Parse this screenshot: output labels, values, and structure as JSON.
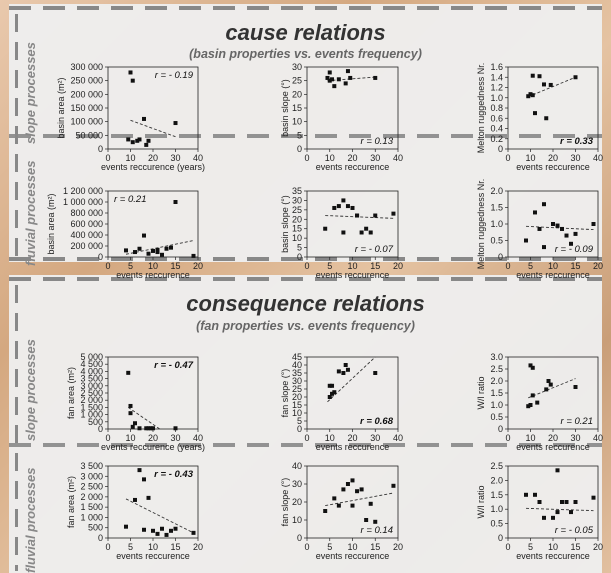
{
  "sections": [
    {
      "title": "cause relations",
      "subtitle": "(basin properties vs. events frequency)"
    },
    {
      "title": "consequence relations",
      "subtitle": "(fan properties vs. events frequency)"
    }
  ],
  "row_labels": {
    "slope": "slope processes",
    "fluvial": "fluvial processes"
  },
  "colors": {
    "dash": "#888888",
    "marker": "#111111",
    "trend": "#333333"
  },
  "chart_data": [
    {
      "type": "scatter",
      "group": "cause",
      "row": "slope",
      "ylabel": "basin area (m²)",
      "xlabel": "events reccurence (years)",
      "xlim": [
        0,
        40
      ],
      "ylim": [
        0,
        300000
      ],
      "xticks": [
        0,
        10,
        20,
        30,
        40
      ],
      "yticks": [
        0,
        50000,
        100000,
        150000,
        200000,
        250000,
        300000
      ],
      "ytick_labels": [
        "0",
        "50 000",
        "100 000",
        "150 000",
        "200 000",
        "250 000",
        "300 000"
      ],
      "x": [
        9,
        10,
        11,
        11,
        13,
        14,
        16,
        17,
        18,
        30
      ],
      "y": [
        35000,
        280000,
        25000,
        250000,
        30000,
        35000,
        110000,
        15000,
        30000,
        95000
      ],
      "trend": [
        [
          10,
          105000
        ],
        [
          30,
          45000
        ]
      ],
      "r_text": "r = - 0.19",
      "r_bold": false,
      "r_pos": "top-right"
    },
    {
      "type": "scatter",
      "group": "cause",
      "row": "slope",
      "ylabel": "basin slope (°)",
      "xlabel": "events reccurence",
      "xlim": [
        0,
        40
      ],
      "ylim": [
        0,
        30
      ],
      "xticks": [
        0,
        10,
        20,
        30,
        40
      ],
      "yticks": [
        0,
        5,
        10,
        15,
        20,
        25,
        30
      ],
      "ytick_labels": [
        "0",
        "5",
        "10",
        "15",
        "20",
        "25",
        "30"
      ],
      "x": [
        9,
        10,
        10,
        11,
        12,
        14,
        17,
        18,
        19,
        30
      ],
      "y": [
        26,
        25,
        28,
        25.5,
        23,
        25.5,
        24,
        28.5,
        26,
        26
      ],
      "trend": [
        [
          9,
          25
        ],
        [
          30,
          26.3
        ]
      ],
      "r_text": "r = 0.13",
      "r_bold": false,
      "r_pos": "bottom-right"
    },
    {
      "type": "scatter",
      "group": "cause",
      "row": "slope",
      "ylabel": "Melton ruggedness Nr.",
      "xlabel": "events reccurence",
      "xlim": [
        0,
        40
      ],
      "ylim": [
        0,
        1.6
      ],
      "xticks": [
        0,
        10,
        20,
        30,
        40
      ],
      "yticks": [
        0,
        0.2,
        0.4,
        0.6,
        0.8,
        1.0,
        1.2,
        1.4,
        1.6
      ],
      "ytick_labels": [
        "0",
        "0.2",
        "0.4",
        "0.6",
        "0.8",
        "1.0",
        "1.2",
        "1.4",
        "1.6"
      ],
      "x": [
        9,
        10,
        11,
        11,
        12,
        14,
        16,
        17,
        19,
        30
      ],
      "y": [
        1.03,
        1.07,
        1.05,
        1.43,
        0.7,
        1.42,
        1.26,
        0.6,
        1.25,
        1.4
      ],
      "trend": [
        [
          9,
          1.02
        ],
        [
          30,
          1.4
        ]
      ],
      "r_text": "r = 0.33",
      "r_bold": true,
      "r_pos": "bottom-right"
    },
    {
      "type": "scatter",
      "group": "cause",
      "row": "fluvial",
      "ylabel": "basin area (m²)",
      "xlabel": "events reccurence",
      "xlim": [
        0,
        20
      ],
      "ylim": [
        0,
        1200000
      ],
      "xticks": [
        0,
        5,
        10,
        15,
        20
      ],
      "yticks": [
        0,
        200000,
        400000,
        600000,
        800000,
        1000000,
        1200000
      ],
      "ytick_labels": [
        "0",
        "200 000",
        "400 000",
        "600 000",
        "800 000",
        "1 000 000",
        "1 200 000"
      ],
      "x": [
        4,
        6,
        7,
        8,
        9,
        10,
        11,
        11,
        12,
        13,
        14,
        15,
        19
      ],
      "y": [
        120000,
        90000,
        150000,
        390000,
        60000,
        110000,
        130000,
        90000,
        40000,
        150000,
        170000,
        1000000,
        20000
      ],
      "trend": [
        [
          4,
          50000
        ],
        [
          19,
          300000
        ]
      ],
      "r_text": "r = 0.21",
      "r_bold": false,
      "r_pos": "top-left"
    },
    {
      "type": "scatter",
      "group": "cause",
      "row": "fluvial",
      "ylabel": "basin slope (°)",
      "xlabel": "events reccurence",
      "xlim": [
        0,
        20
      ],
      "ylim": [
        0,
        35
      ],
      "xticks": [
        0,
        5,
        10,
        15,
        20
      ],
      "yticks": [
        0,
        5,
        10,
        15,
        20,
        25,
        30,
        35
      ],
      "ytick_labels": [
        "0",
        "5",
        "10",
        "15",
        "20",
        "25",
        "30",
        "35"
      ],
      "x": [
        4,
        6,
        7,
        8,
        8,
        9,
        10,
        11,
        11,
        12,
        13,
        14,
        15,
        19
      ],
      "y": [
        15,
        26,
        27,
        30,
        13,
        27,
        26,
        22,
        22,
        13,
        15,
        13,
        22,
        23
      ],
      "trend": [
        [
          4,
          22
        ],
        [
          19,
          20.5
        ]
      ],
      "r_text": "r = - 0.07",
      "r_bold": false,
      "r_pos": "bottom-right"
    },
    {
      "type": "scatter",
      "group": "cause",
      "row": "fluvial",
      "ylabel": "Melton ruggedness Nr.",
      "xlabel": "events reccurence",
      "xlim": [
        0,
        20
      ],
      "ylim": [
        0,
        2.0
      ],
      "xticks": [
        0,
        5,
        10,
        15,
        20
      ],
      "yticks": [
        0,
        0.5,
        1.0,
        1.5,
        2.0
      ],
      "ytick_labels": [
        "0",
        "0.5",
        "1.0",
        "1.5",
        "2.0"
      ],
      "x": [
        4,
        6,
        7,
        8,
        8,
        10,
        11,
        11,
        12,
        13,
        14,
        15,
        19
      ],
      "y": [
        0.5,
        1.35,
        0.85,
        1.6,
        0.3,
        1.0,
        0.95,
        0.95,
        0.85,
        0.65,
        0.4,
        0.7,
        1.0
      ],
      "trend": [
        [
          4,
          0.93
        ],
        [
          19,
          0.83
        ]
      ],
      "r_text": "r = - 0.09",
      "r_bold": false,
      "r_pos": "bottom-right"
    },
    {
      "type": "scatter",
      "group": "consequence",
      "row": "slope",
      "ylabel": "fan area (m²)",
      "xlabel": "events reccurence (years)",
      "xlim": [
        0,
        40
      ],
      "ylim": [
        0,
        5000
      ],
      "xticks": [
        0,
        10,
        20,
        30,
        40
      ],
      "yticks": [
        0,
        500,
        1000,
        1500,
        2000,
        2500,
        3000,
        3500,
        4000,
        4500,
        5000
      ],
      "ytick_labels": [
        "0",
        "500",
        "1 000",
        "1 500",
        "2 000",
        "2 500",
        "3 000",
        "3 500",
        "4 000",
        "4 500",
        "5 000"
      ],
      "x": [
        9,
        10,
        10,
        11,
        12,
        14,
        17,
        18,
        19,
        20,
        30
      ],
      "y": [
        3900,
        1600,
        1100,
        150,
        400,
        50,
        50,
        50,
        50,
        50,
        50
      ],
      "trend": [
        [
          9,
          1500
        ],
        [
          23,
          0
        ]
      ],
      "r_text": "r = - 0.47",
      "r_bold": true,
      "r_pos": "top-right"
    },
    {
      "type": "scatter",
      "group": "consequence",
      "row": "slope",
      "ylabel": "fan slope (°)",
      "xlabel": "events reccurence",
      "xlim": [
        0,
        40
      ],
      "ylim": [
        0,
        45
      ],
      "xticks": [
        0,
        10,
        20,
        30,
        40
      ],
      "yticks": [
        0,
        5,
        10,
        15,
        20,
        25,
        30,
        35,
        40,
        45
      ],
      "ytick_labels": [
        "0",
        "5",
        "10",
        "15",
        "20",
        "25",
        "30",
        "35",
        "40",
        "45"
      ],
      "x": [
        10,
        10,
        11,
        11,
        12,
        14,
        16,
        17,
        18,
        30
      ],
      "y": [
        27,
        20,
        22,
        27,
        23,
        36,
        35,
        40,
        37,
        35
      ],
      "trend": [
        [
          9,
          17
        ],
        [
          30,
          45
        ]
      ],
      "r_text": "r = 0.68",
      "r_bold": true,
      "r_pos": "bottom-right"
    },
    {
      "type": "scatter",
      "group": "consequence",
      "row": "slope",
      "ylabel": "W/l ratio",
      "xlabel": "events reccurence",
      "xlim": [
        0,
        40
      ],
      "ylim": [
        0,
        3.0
      ],
      "xticks": [
        0,
        10,
        20,
        30,
        40
      ],
      "yticks": [
        0,
        0.5,
        1.0,
        1.5,
        2.0,
        2.5,
        3.0
      ],
      "ytick_labels": [
        "0",
        "0.5",
        "1.0",
        "1.5",
        "2.0",
        "2.5",
        "3.0"
      ],
      "x": [
        9,
        10,
        10,
        11,
        11,
        13,
        17,
        18,
        19,
        30
      ],
      "y": [
        0.95,
        2.65,
        1.0,
        2.55,
        1.4,
        1.1,
        1.65,
        2.0,
        1.85,
        1.75
      ],
      "trend": [
        [
          9,
          1.3
        ],
        [
          30,
          2.1
        ]
      ],
      "r_text": "r = 0.21",
      "r_bold": false,
      "r_pos": "bottom-right"
    },
    {
      "type": "scatter",
      "group": "consequence",
      "row": "fluvial",
      "ylabel": "fan area (m²)",
      "xlabel": "events reccurence",
      "xlim": [
        0,
        20
      ],
      "ylim": [
        0,
        3500
      ],
      "xticks": [
        0,
        5,
        10,
        15,
        20
      ],
      "yticks": [
        0,
        500,
        1000,
        1500,
        2000,
        2500,
        3000,
        3500
      ],
      "ytick_labels": [
        "0",
        "500",
        "1 000",
        "1 500",
        "2 000",
        "2 500",
        "3 000",
        "3 500"
      ],
      "x": [
        4,
        6,
        7,
        8,
        8,
        9,
        10,
        11,
        12,
        13,
        14,
        15,
        19
      ],
      "y": [
        550,
        1850,
        3300,
        2850,
        400,
        1950,
        350,
        200,
        450,
        150,
        350,
        450,
        250
      ],
      "trend": [
        [
          4,
          1900
        ],
        [
          19,
          250
        ]
      ],
      "r_text": "r = - 0.43",
      "r_bold": true,
      "r_pos": "top-right"
    },
    {
      "type": "scatter",
      "group": "consequence",
      "row": "fluvial",
      "ylabel": "fan slope (°)",
      "xlabel": "events reccurence",
      "xlim": [
        0,
        20
      ],
      "ylim": [
        0,
        40
      ],
      "xticks": [
        0,
        5,
        10,
        15,
        20
      ],
      "yticks": [
        0,
        10,
        20,
        30,
        40
      ],
      "ytick_labels": [
        "0",
        "10",
        "20",
        "30",
        "40"
      ],
      "x": [
        4,
        6,
        7,
        8,
        9,
        10,
        10,
        11,
        12,
        13,
        14,
        15,
        19
      ],
      "y": [
        15,
        22,
        18,
        27,
        30,
        32,
        18,
        26,
        27,
        10,
        19,
        9,
        29
      ],
      "trend": [
        [
          4,
          18
        ],
        [
          19,
          25
        ]
      ],
      "r_text": "r = 0.14",
      "r_bold": false,
      "r_pos": "bottom-right"
    },
    {
      "type": "scatter",
      "group": "consequence",
      "row": "fluvial",
      "ylabel": "W/l ratio",
      "xlabel": "events reccurence",
      "xlim": [
        0,
        20
      ],
      "ylim": [
        0,
        2.5
      ],
      "xticks": [
        0,
        5,
        10,
        15,
        20
      ],
      "yticks": [
        0,
        0.5,
        1.0,
        1.5,
        2.0,
        2.5
      ],
      "ytick_labels": [
        "0",
        "0.5",
        "1.0",
        "1.5",
        "2.0",
        "2.5"
      ],
      "x": [
        4,
        6,
        7,
        8,
        10,
        11,
        11,
        12,
        13,
        14,
        15,
        19
      ],
      "y": [
        1.5,
        1.5,
        1.25,
        0.7,
        0.7,
        2.35,
        0.9,
        1.25,
        1.25,
        0.9,
        1.25,
        1.4
      ],
      "trend": [
        [
          4,
          1.03
        ],
        [
          19,
          0.95
        ]
      ],
      "r_text": "r = - 0.05",
      "r_bold": false,
      "r_pos": "bottom-right"
    }
  ]
}
